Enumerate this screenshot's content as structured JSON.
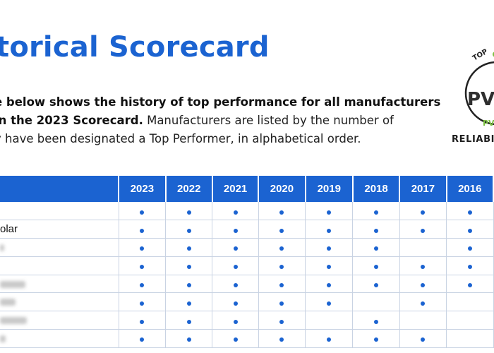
{
  "title": "torical Scorecard",
  "intro": {
    "line1_bold": "e below shows the history of top performance for all manufacturers",
    "line2_bold": "in the 2023 Scorecard.",
    "line2_rest": " Manufacturers are listed by the number of",
    "line3": "y have been designated a Top Performer, in alphabetical order."
  },
  "badge": {
    "top_text": "TOP",
    "center_text": "PV",
    "small_text": "PV",
    "bottom_text": "RELIABILI",
    "colors": {
      "ring": "#222222",
      "center": "#2f2f2f",
      "green": "#7cc043"
    }
  },
  "table": {
    "header_color": "#1b63d1",
    "years": [
      "2023",
      "2022",
      "2021",
      "2020",
      "2019",
      "2018",
      "2017",
      "2016"
    ],
    "rows": [
      {
        "name": "",
        "blur": 0,
        "marks": [
          1,
          1,
          1,
          1,
          1,
          1,
          1,
          1
        ]
      },
      {
        "name": "olar",
        "blur": 0,
        "marks": [
          1,
          1,
          1,
          1,
          1,
          1,
          1,
          1
        ]
      },
      {
        "name": "",
        "blur": 6,
        "marks": [
          1,
          1,
          1,
          1,
          1,
          1,
          0,
          1
        ]
      },
      {
        "name": "",
        "blur": 0,
        "marks": [
          1,
          1,
          1,
          1,
          1,
          1,
          1,
          1
        ]
      },
      {
        "name": "",
        "blur": 36,
        "marks": [
          1,
          1,
          1,
          1,
          1,
          1,
          1,
          1
        ]
      },
      {
        "name": "",
        "blur": 22,
        "marks": [
          1,
          1,
          1,
          1,
          1,
          0,
          1,
          0
        ]
      },
      {
        "name": "",
        "blur": 38,
        "marks": [
          1,
          1,
          1,
          1,
          0,
          1,
          0,
          0
        ]
      },
      {
        "name": "",
        "blur": 8,
        "marks": [
          1,
          1,
          1,
          1,
          1,
          1,
          1,
          0
        ]
      }
    ]
  }
}
